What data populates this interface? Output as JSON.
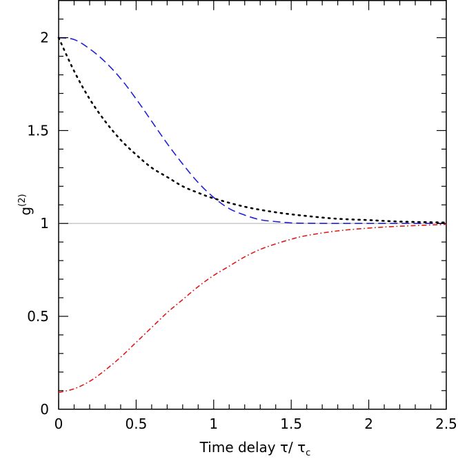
{
  "chart_data": {
    "type": "line",
    "title": "",
    "xlabel": "Time delay τ/ τ",
    "xlabel_sub": "c",
    "ylabel": "g",
    "ylabel_sup": "(2)",
    "xlim": [
      0,
      2.5
    ],
    "ylim": [
      0,
      2.2
    ],
    "x_ticks": [
      0,
      0.5,
      1,
      1.5,
      2,
      2.5
    ],
    "x_tick_labels": [
      "0",
      "0.5",
      "1",
      "1.5",
      "2",
      "2.5"
    ],
    "y_ticks": [
      0,
      0.5,
      1,
      1.5,
      2
    ],
    "y_tick_labels": [
      "0",
      "0.5",
      "1",
      "1.5",
      "2"
    ],
    "grid": false,
    "reference_line": {
      "y": 1,
      "color": "#c8c8c8"
    },
    "series": [
      {
        "style": "dashed",
        "color": "#1f1fd8",
        "x": [
          0,
          0.1,
          0.2,
          0.3,
          0.4,
          0.5,
          0.6,
          0.7,
          0.8,
          0.9,
          1.0,
          1.1,
          1.2,
          1.3,
          1.4,
          1.5,
          1.6,
          1.8,
          2.0,
          2.5
        ],
        "y": [
          2.0,
          1.99,
          1.94,
          1.87,
          1.78,
          1.67,
          1.55,
          1.43,
          1.32,
          1.22,
          1.14,
          1.08,
          1.045,
          1.02,
          1.01,
          1.003,
          1.001,
          1.0,
          1.0,
          1.0
        ]
      },
      {
        "style": "dotted",
        "color": "#000000",
        "x": [
          0,
          0.1,
          0.2,
          0.3,
          0.4,
          0.5,
          0.6,
          0.7,
          0.8,
          0.9,
          1.0,
          1.2,
          1.4,
          1.6,
          1.8,
          2.0,
          2.2,
          2.5
        ],
        "y": [
          2.0,
          1.82,
          1.67,
          1.55,
          1.45,
          1.37,
          1.3,
          1.25,
          1.2,
          1.165,
          1.135,
          1.09,
          1.06,
          1.04,
          1.025,
          1.018,
          1.01,
          1.005
        ]
      },
      {
        "style": "dashdot",
        "color": "#e01818",
        "x": [
          0,
          0.1,
          0.2,
          0.3,
          0.4,
          0.5,
          0.6,
          0.7,
          0.8,
          0.9,
          1.0,
          1.1,
          1.2,
          1.3,
          1.4,
          1.5,
          1.6,
          1.8,
          2.0,
          2.2,
          2.5
        ],
        "y": [
          0.09,
          0.11,
          0.15,
          0.21,
          0.28,
          0.36,
          0.44,
          0.52,
          0.59,
          0.66,
          0.72,
          0.77,
          0.82,
          0.86,
          0.89,
          0.915,
          0.935,
          0.96,
          0.975,
          0.985,
          0.995
        ]
      }
    ]
  }
}
